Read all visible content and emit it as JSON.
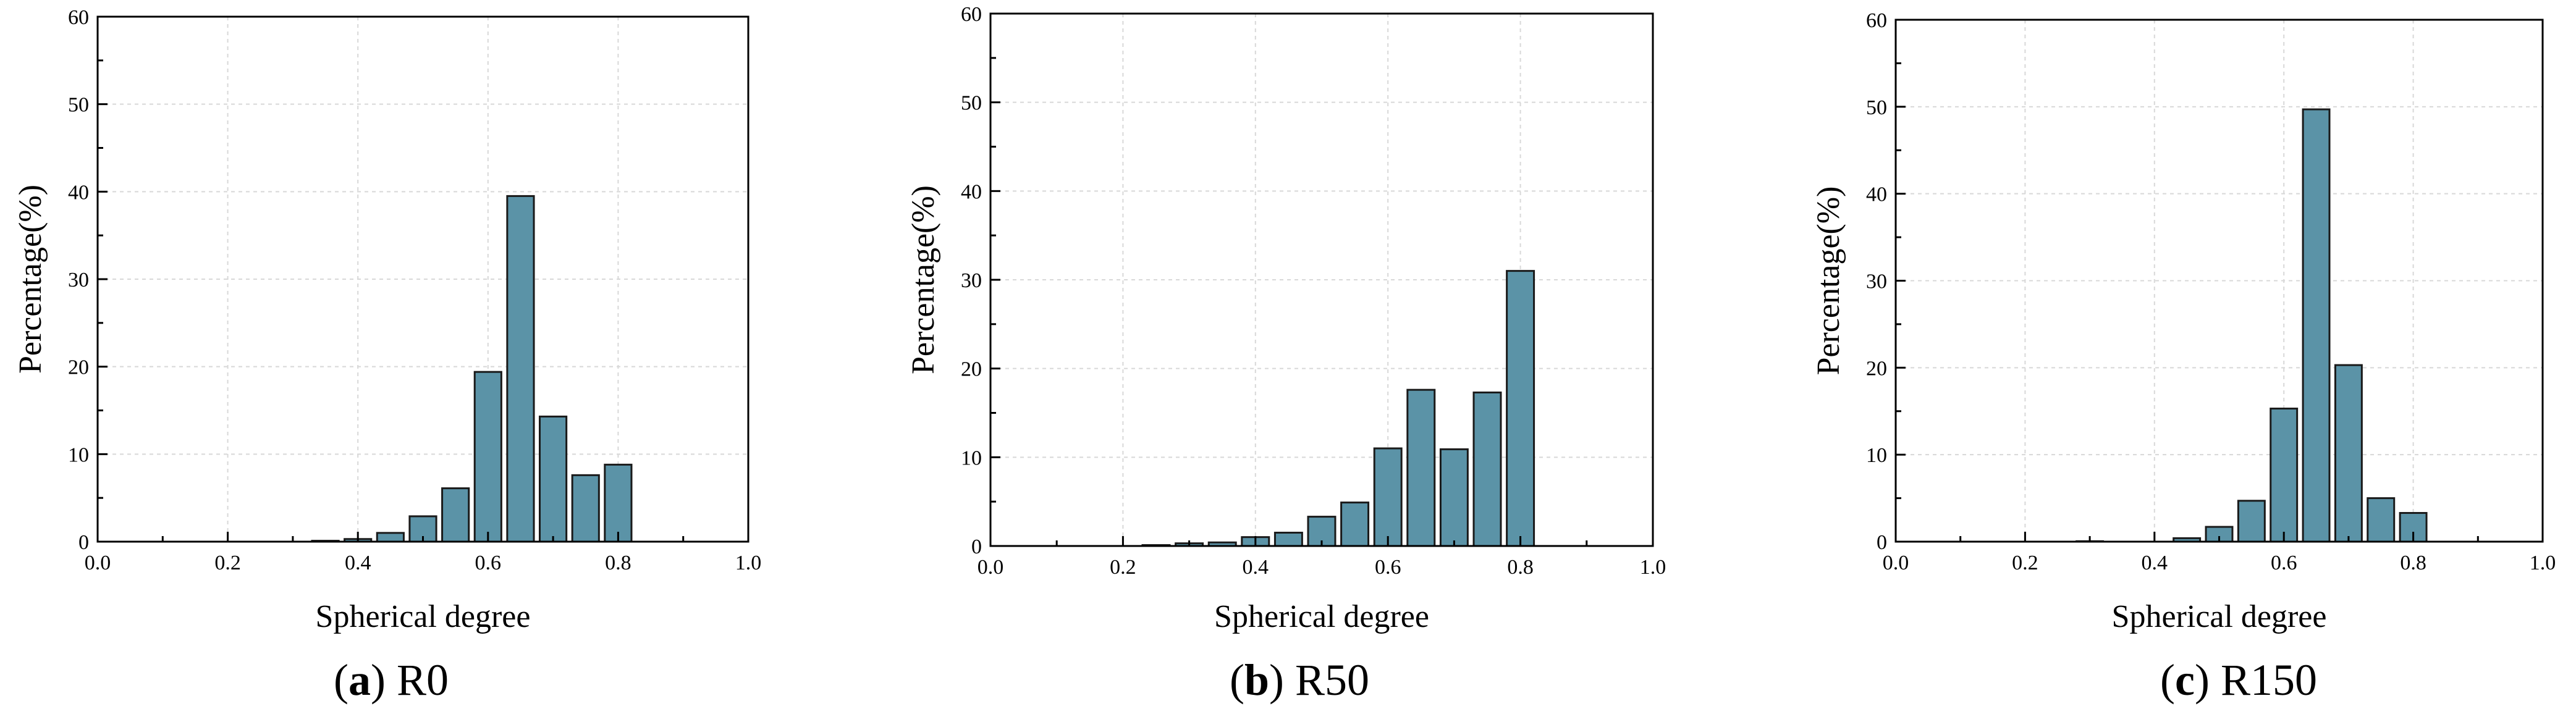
{
  "colors": {
    "bar": "#5b93a7",
    "bar_edge": "#1a1a1a",
    "grid": "#d8d8d8"
  },
  "chart_data": [
    {
      "type": "bar",
      "id": "a",
      "caption_letter": "a",
      "caption_text": "R0",
      "xlabel": "Spherical degree",
      "ylabel": "Percentage(%)",
      "xlim": [
        0.0,
        1.0
      ],
      "ylim": [
        0,
        60
      ],
      "xticks": [
        "0.0",
        "0.2",
        "0.4",
        "0.6",
        "0.8",
        "1.0"
      ],
      "yticks": [
        "0",
        "10",
        "20",
        "30",
        "40",
        "50",
        "60"
      ],
      "grid": true,
      "bin_width": 0.05,
      "x": [
        0.35,
        0.4,
        0.45,
        0.5,
        0.55,
        0.6,
        0.65,
        0.7,
        0.75,
        0.8
      ],
      "values": [
        0.1,
        0.3,
        1.0,
        2.9,
        6.1,
        19.4,
        39.5,
        14.3,
        7.6,
        8.8
      ]
    },
    {
      "type": "bar",
      "id": "b",
      "caption_letter": "b",
      "caption_text": "R50",
      "xlabel": "Spherical degree",
      "ylabel": "Percentage(%)",
      "xlim": [
        0.0,
        1.0
      ],
      "ylim": [
        0,
        60
      ],
      "xticks": [
        "0.0",
        "0.2",
        "0.4",
        "0.6",
        "0.8",
        "1.0"
      ],
      "yticks": [
        "0",
        "10",
        "20",
        "30",
        "40",
        "50",
        "60"
      ],
      "grid": true,
      "bin_width": 0.05,
      "x": [
        0.25,
        0.3,
        0.35,
        0.4,
        0.45,
        0.5,
        0.55,
        0.6,
        0.65,
        0.7,
        0.75,
        0.8
      ],
      "values": [
        0.1,
        0.3,
        0.4,
        1.0,
        1.5,
        3.3,
        4.9,
        11.0,
        17.6,
        10.9,
        17.3,
        31.0
      ]
    },
    {
      "type": "bar",
      "id": "c",
      "caption_letter": "c",
      "caption_text": "R150",
      "xlabel": "Spherical degree",
      "ylabel": "Percentage(%)",
      "xlim": [
        0.0,
        1.0
      ],
      "ylim": [
        0,
        60
      ],
      "xticks": [
        "0.0",
        "0.2",
        "0.4",
        "0.6",
        "0.8",
        "1.0"
      ],
      "yticks": [
        "0",
        "10",
        "20",
        "30",
        "40",
        "50",
        "60"
      ],
      "grid": true,
      "bin_width": 0.05,
      "x": [
        0.3,
        0.45,
        0.5,
        0.55,
        0.6,
        0.65,
        0.7,
        0.75,
        0.8
      ],
      "values": [
        0.05,
        0.4,
        1.7,
        4.7,
        15.3,
        49.7,
        20.3,
        5.0,
        3.3
      ]
    }
  ]
}
